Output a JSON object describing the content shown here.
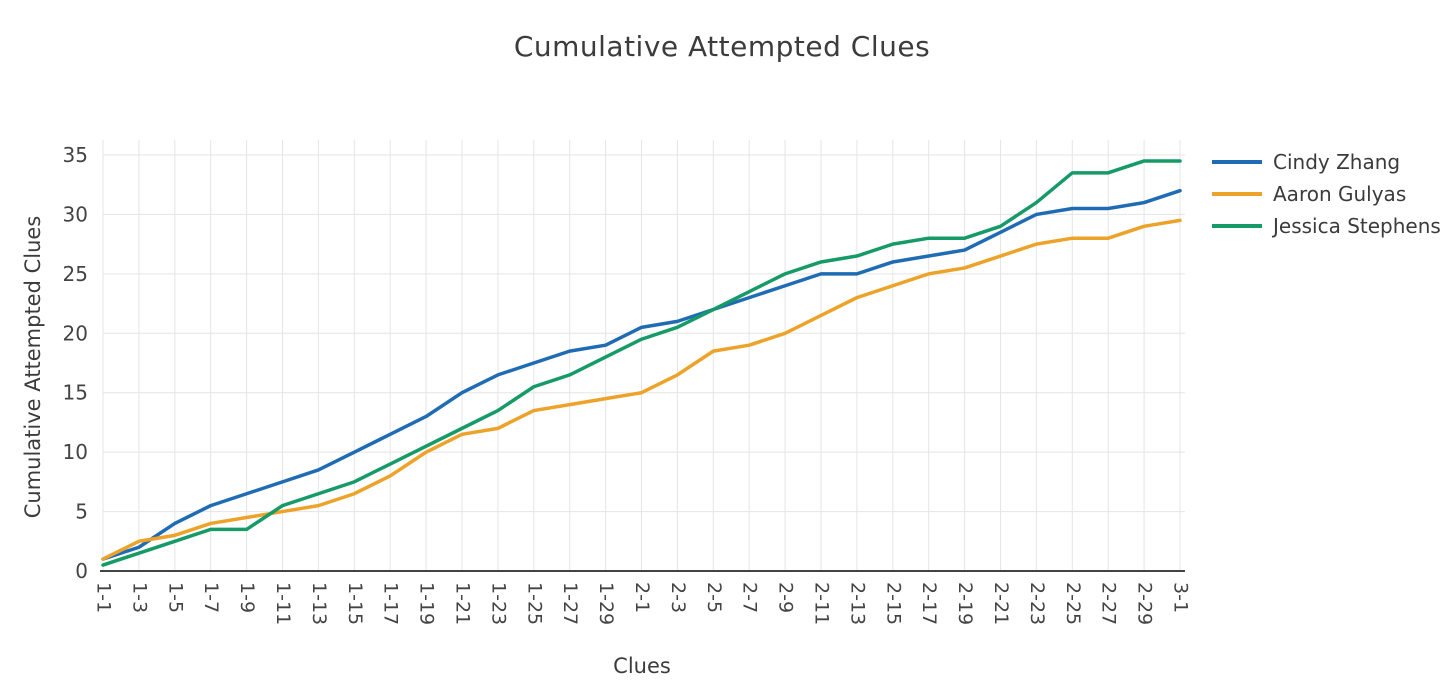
{
  "title": "Cumulative Attempted Clues",
  "axes": {
    "x_title": "Clues",
    "y_title": "Cumulative Attempted Clues",
    "y_ticks": [
      0,
      5,
      10,
      15,
      20,
      25,
      30,
      35
    ]
  },
  "style_colors": {
    "grid": "#e5e5e5",
    "axis_line": "#444444",
    "tick_text": "#444444",
    "title_text": "#3c3c3c"
  },
  "chart_data": {
    "type": "line",
    "title": "Cumulative Attempted Clues",
    "xlabel": "Clues",
    "ylabel": "Cumulative Attempted Clues",
    "ylim": [
      0,
      35
    ],
    "grid": true,
    "legend_position": "right",
    "categories": [
      "1-1",
      "1-3",
      "1-5",
      "1-7",
      "1-9",
      "1-11",
      "1-13",
      "1-15",
      "1-17",
      "1-19",
      "1-21",
      "1-23",
      "1-25",
      "1-27",
      "1-29",
      "2-1",
      "2-3",
      "2-5",
      "2-7",
      "2-9",
      "2-11",
      "2-13",
      "2-15",
      "2-17",
      "2-19",
      "2-21",
      "2-23",
      "2-25",
      "2-27",
      "2-29",
      "3-1"
    ],
    "series": [
      {
        "name": "Cindy Zhang",
        "color": "#1f6cb4",
        "values": [
          1,
          2,
          4,
          5.5,
          6.5,
          7.5,
          8.5,
          10,
          11.5,
          13,
          15,
          16.5,
          17.5,
          18.5,
          19,
          20.5,
          21,
          22,
          23,
          24,
          25,
          25,
          26,
          26.5,
          27,
          28.5,
          30,
          30.5,
          30.5,
          31,
          32
        ]
      },
      {
        "name": "Aaron Gulyas",
        "color": "#eda32a",
        "values": [
          1,
          2.5,
          3,
          4,
          4.5,
          5,
          5.5,
          6.5,
          8,
          10,
          11.5,
          12,
          13.5,
          14,
          14.5,
          15,
          16.5,
          18.5,
          19,
          20,
          21.5,
          23,
          24,
          25,
          25.5,
          26.5,
          27.5,
          28,
          28,
          29,
          29.5
        ]
      },
      {
        "name": "Jessica Stephens",
        "color": "#169a67",
        "values": [
          0.5,
          1.5,
          2.5,
          3.5,
          3.5,
          5.5,
          6.5,
          7.5,
          9,
          10.5,
          12,
          13.5,
          15.5,
          16.5,
          18,
          19.5,
          20.5,
          22,
          23.5,
          25,
          26,
          26.5,
          27.5,
          28,
          28,
          29,
          31,
          33.5,
          33.5,
          34.5,
          34.5
        ]
      }
    ]
  }
}
